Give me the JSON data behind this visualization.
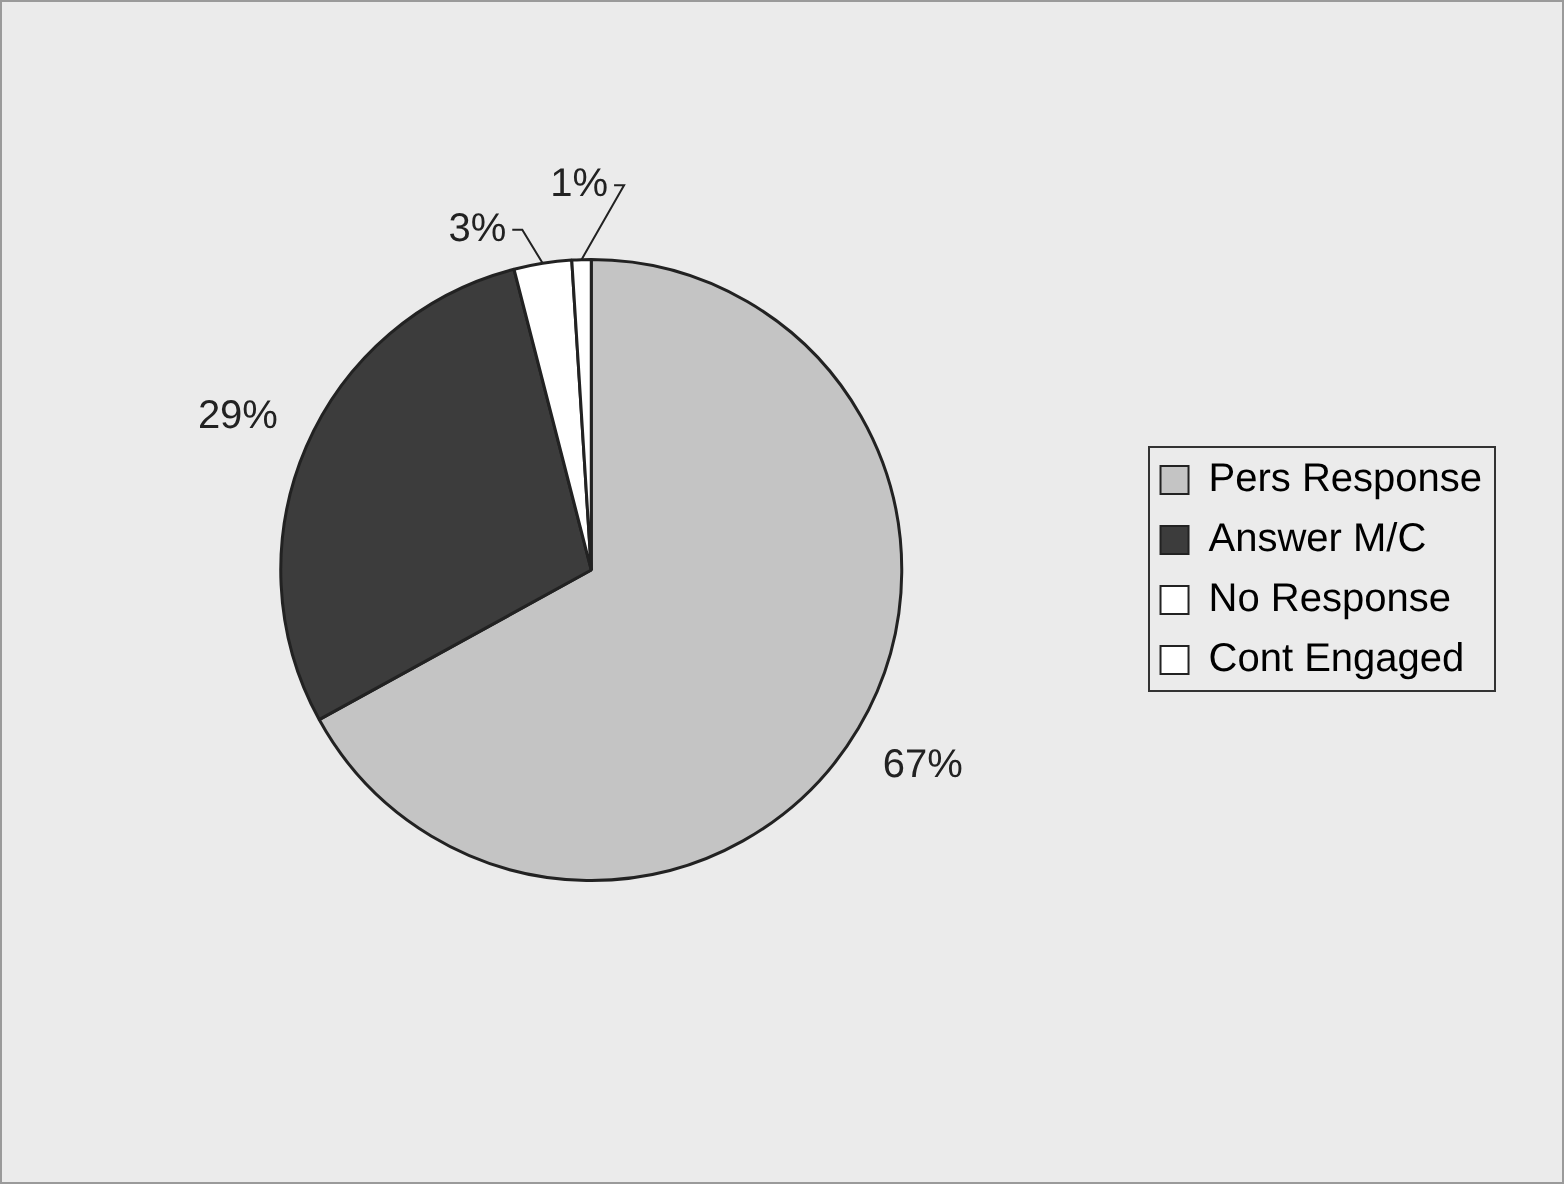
{
  "chart_data": {
    "type": "pie",
    "categories": [
      "Pers Response",
      "Answer M/C",
      "No Response",
      "Cont Engaged"
    ],
    "values": [
      67,
      29,
      3,
      1
    ],
    "colors": [
      "#c4c4c4",
      "#3c3c3c",
      "#ffffff",
      "#ffffff"
    ],
    "value_labels": [
      "67%",
      "29%",
      "3%",
      "1%"
    ],
    "legend": "right"
  }
}
